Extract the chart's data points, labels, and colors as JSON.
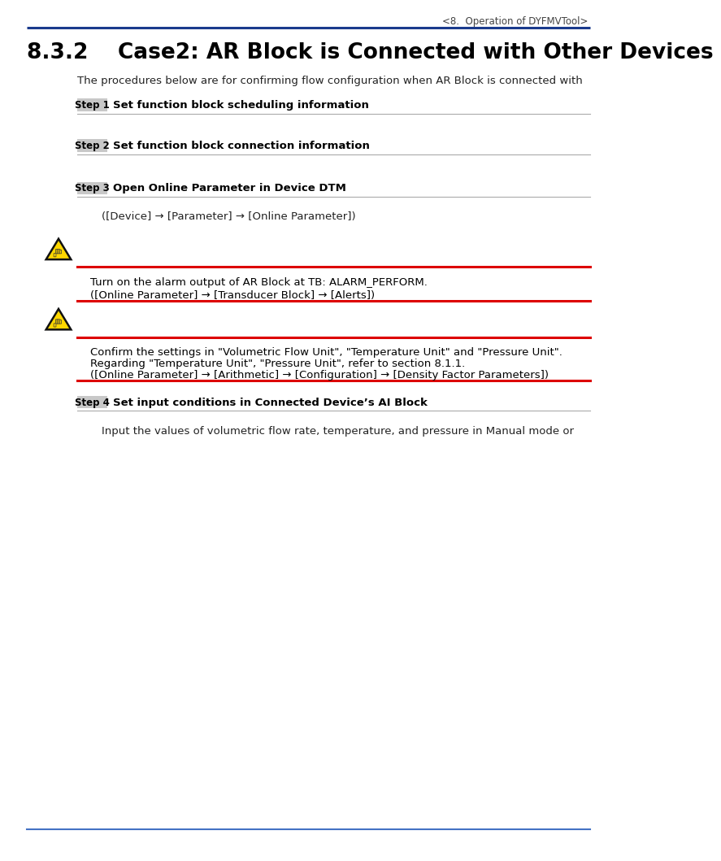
{
  "header_text": "<8.  Operation of DYFMVTool>",
  "header_line_color": "#1a3a8c",
  "section_number": "8.3.2",
  "section_title": "Case2: AR Block is Connected with Other Devices",
  "intro_text": "The procedures below are for confirming flow configuration when AR Block is connected with",
  "step1_label": "Step 1",
  "step1_text": "Set function block scheduling information",
  "step2_label": "Step 2",
  "step2_text": "Set function block connection information",
  "step3_label": "Step 3",
  "step3_text": "Open Online Parameter in Device DTM",
  "step3_sub": "([Device] → [Parameter] → [Online Parameter])",
  "warning1_line1": "Turn on the alarm output of AR Block at TB: ALARM_PERFORM.",
  "warning1_line2": "([Online Parameter] → [Transducer Block] → [Alerts])",
  "warning2_line1": "Confirm the settings in \"Volumetric Flow Unit\", \"Temperature Unit\" and \"Pressure Unit\".",
  "warning2_line2": "Regarding \"Temperature Unit\", \"Pressure Unit\", refer to section 8.1.1.",
  "warning2_line3": "([Online Parameter] → [Arithmetic] → [Configuration] → [Density Factor Parameters])",
  "step4_label": "Step 4",
  "step4_text": "Set input conditions in Connected Device’s AI Block",
  "step4_sub": "Input the values of volumetric flow rate, temperature, and pressure in Manual mode or",
  "footer_line_color": "#4472c4",
  "bg_color": "#ffffff",
  "text_color": "#000000",
  "step_bg_color": "#c8c8c8",
  "red_line_color": "#dd0000",
  "gray_line_color": "#aaaaaa",
  "blue_header_color": "#1a3a8c"
}
